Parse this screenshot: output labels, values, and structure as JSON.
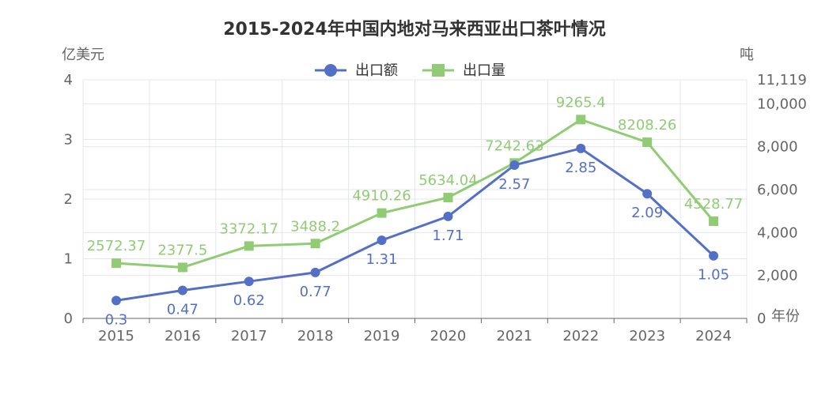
{
  "chart_data": {
    "type": "line",
    "title": "2015-2024年中国内地对马来西亚出口茶叶情况",
    "xlabel": "年份",
    "categories": [
      "2015",
      "2016",
      "2017",
      "2018",
      "2019",
      "2020",
      "2021",
      "2022",
      "2023",
      "2024"
    ],
    "y_left": {
      "label": "亿美元",
      "ticks": [
        "0",
        "1",
        "2",
        "3",
        "4"
      ],
      "range": [
        0,
        4
      ]
    },
    "y_right": {
      "label": "吨",
      "ticks": [
        "0",
        "2,000",
        "4,000",
        "6,000",
        "8,000",
        "10,000",
        "11,119"
      ],
      "range": [
        0,
        11119
      ]
    },
    "series": [
      {
        "name": "出口额",
        "axis": "left",
        "marker": "circle",
        "color": "#5470c6",
        "values": [
          0.3,
          0.47,
          0.62,
          0.77,
          1.31,
          1.71,
          2.57,
          2.85,
          2.09,
          1.05
        ],
        "labels": [
          "0.3",
          "0.47",
          "0.62",
          "0.77",
          "1.31",
          "1.71",
          "2.57",
          "2.85",
          "2.09",
          "1.05"
        ]
      },
      {
        "name": "出口量",
        "axis": "right",
        "marker": "square",
        "color": "#91cc75",
        "values": [
          2572.37,
          2377.5,
          3372.17,
          3488.2,
          4910.26,
          5634.04,
          7242.63,
          9265.4,
          8208.26,
          4528.77
        ],
        "labels": [
          "2572.37",
          "2377.5",
          "3372.17",
          "3488.2",
          "4910.26",
          "5634.04",
          "7242.63",
          "9265.4",
          "8208.26",
          "4528.77"
        ]
      }
    ],
    "legend": "top-center",
    "grid": true
  }
}
